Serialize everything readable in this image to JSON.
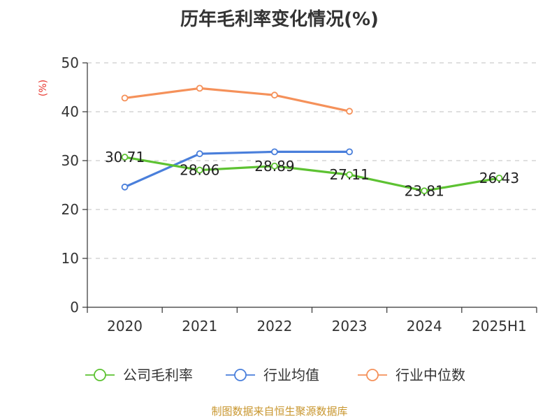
{
  "chart_data": {
    "type": "line",
    "title": "历年毛利率变化情况(%)",
    "ylabel": "(%)",
    "xlabel": "",
    "categories": [
      "2020",
      "2021",
      "2022",
      "2023",
      "2024",
      "2025H1"
    ],
    "ylim": [
      0,
      50
    ],
    "yticks": [
      0,
      10,
      20,
      30,
      40,
      50
    ],
    "grid": true,
    "legend_position": "bottom",
    "series": [
      {
        "name": "公司毛利率",
        "color": "#5dc232",
        "values": [
          30.71,
          28.06,
          28.89,
          27.11,
          23.81,
          26.43
        ],
        "labels": [
          "30.71",
          "28.06",
          "28.89",
          "27.11",
          "23.81",
          "26.43"
        ]
      },
      {
        "name": "行业均值",
        "color": "#4a7fdb",
        "values": [
          24.6,
          31.4,
          31.8,
          31.8,
          null,
          null
        ]
      },
      {
        "name": "行业中位数",
        "color": "#f5915a",
        "values": [
          42.8,
          44.8,
          43.4,
          40.1,
          null,
          null
        ]
      }
    ]
  },
  "source": "制图数据来自恒生聚源数据库"
}
